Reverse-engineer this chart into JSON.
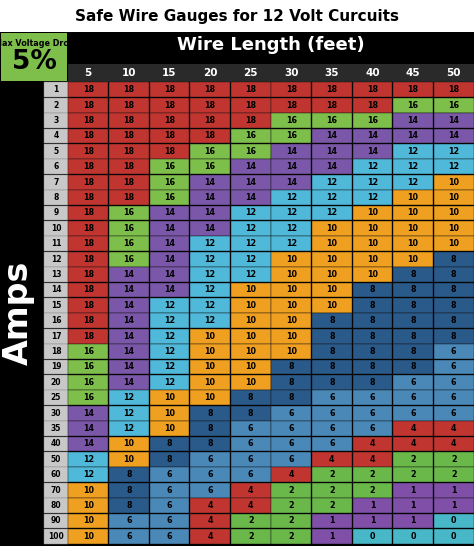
{
  "title": "Safe Wire Gauges for 12 Volt Curcuits",
  "wire_length_label": "Wire Length (feet)",
  "amps_label": "Amps",
  "voltage_drop_label": "Max Voltage Drop",
  "voltage_drop_value": "5%",
  "col_labels": [
    5,
    10,
    15,
    20,
    25,
    30,
    35,
    40,
    45,
    50
  ],
  "row_labels": [
    1,
    2,
    3,
    4,
    5,
    6,
    7,
    8,
    9,
    10,
    11,
    12,
    13,
    14,
    15,
    16,
    17,
    18,
    19,
    20,
    25,
    30,
    35,
    40,
    50,
    60,
    70,
    80,
    90,
    100
  ],
  "table_data": [
    [
      18,
      18,
      18,
      18,
      18,
      18,
      18,
      18,
      18,
      18
    ],
    [
      18,
      18,
      18,
      18,
      18,
      18,
      18,
      18,
      16,
      16
    ],
    [
      18,
      18,
      18,
      18,
      18,
      16,
      16,
      16,
      14,
      14
    ],
    [
      18,
      18,
      18,
      18,
      16,
      16,
      14,
      14,
      14,
      14
    ],
    [
      18,
      18,
      18,
      16,
      16,
      14,
      14,
      14,
      12,
      12
    ],
    [
      18,
      18,
      16,
      16,
      14,
      14,
      14,
      12,
      12,
      12
    ],
    [
      18,
      18,
      16,
      14,
      14,
      14,
      12,
      12,
      12,
      10
    ],
    [
      18,
      18,
      16,
      14,
      14,
      12,
      12,
      12,
      10,
      10
    ],
    [
      18,
      16,
      14,
      14,
      12,
      12,
      12,
      10,
      10,
      10
    ],
    [
      18,
      16,
      14,
      14,
      12,
      12,
      10,
      10,
      10,
      10
    ],
    [
      18,
      16,
      14,
      12,
      12,
      12,
      10,
      10,
      10,
      10
    ],
    [
      18,
      16,
      14,
      12,
      12,
      10,
      10,
      10,
      10,
      8
    ],
    [
      18,
      14,
      14,
      12,
      12,
      10,
      10,
      10,
      8,
      8
    ],
    [
      18,
      14,
      14,
      12,
      10,
      10,
      10,
      8,
      8,
      8
    ],
    [
      18,
      14,
      12,
      12,
      10,
      10,
      10,
      8,
      8,
      8
    ],
    [
      18,
      14,
      12,
      12,
      10,
      10,
      8,
      8,
      8,
      8
    ],
    [
      18,
      14,
      12,
      10,
      10,
      10,
      8,
      8,
      8,
      8
    ],
    [
      16,
      14,
      12,
      10,
      10,
      10,
      8,
      8,
      8,
      6
    ],
    [
      16,
      14,
      12,
      10,
      10,
      8,
      8,
      8,
      8,
      6
    ],
    [
      16,
      14,
      12,
      10,
      10,
      8,
      8,
      8,
      6,
      6
    ],
    [
      16,
      12,
      10,
      10,
      8,
      8,
      6,
      6,
      6,
      6
    ],
    [
      14,
      12,
      10,
      8,
      8,
      6,
      6,
      6,
      6,
      6
    ],
    [
      14,
      12,
      10,
      8,
      6,
      6,
      6,
      6,
      4,
      4
    ],
    [
      14,
      10,
      8,
      8,
      6,
      6,
      6,
      4,
      4,
      4
    ],
    [
      12,
      10,
      8,
      6,
      6,
      6,
      4,
      4,
      2,
      2
    ],
    [
      12,
      8,
      6,
      6,
      6,
      4,
      2,
      2,
      2,
      2
    ],
    [
      10,
      8,
      6,
      6,
      4,
      2,
      2,
      2,
      1,
      1
    ],
    [
      10,
      8,
      6,
      4,
      4,
      2,
      2,
      1,
      1,
      1
    ],
    [
      10,
      6,
      6,
      4,
      2,
      2,
      1,
      1,
      1,
      0
    ],
    [
      10,
      6,
      6,
      4,
      2,
      2,
      1,
      0,
      0,
      0
    ]
  ],
  "gauge_colors": {
    "18": "#c13530",
    "16": "#7ebe4a",
    "14": "#7a57a8",
    "12": "#50b8d8",
    "10": "#f0a020",
    "8": "#2a5a8a",
    "6": "#4a88b8",
    "4": "#c13530",
    "2": "#6ab84a",
    "1": "#8050a8",
    "0": "#48b8c8"
  },
  "bg_color": "#000000",
  "title_bg": "#ffffff",
  "title_color": "#000000",
  "header_bg": "#000000",
  "header_text": "#ffffff",
  "vd_box_color": "#7ebe4a",
  "vd_text_color": "#000000",
  "row_label_bg": "#c8c8c8",
  "row_label_color": "#000000",
  "col_header_bg": "#2a2a2a",
  "col_header_color": "#ffffff"
}
